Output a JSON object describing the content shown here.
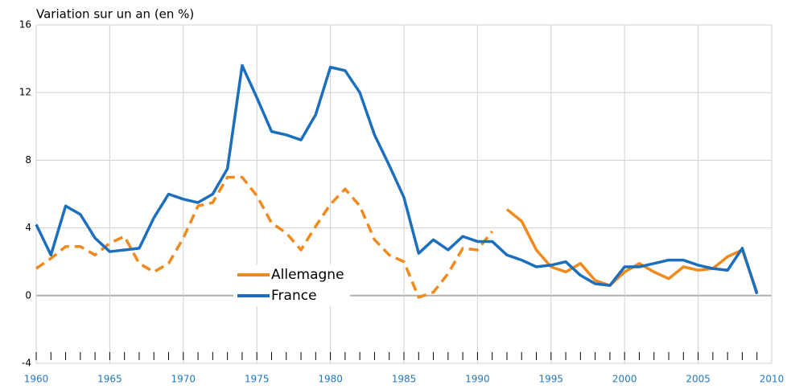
{
  "chart_data": {
    "type": "line",
    "title": "Variation sur un an (en %)",
    "x": [
      1960,
      1961,
      1962,
      1963,
      1964,
      1965,
      1966,
      1967,
      1968,
      1969,
      1970,
      1971,
      1972,
      1973,
      1974,
      1975,
      1976,
      1977,
      1978,
      1979,
      1980,
      1981,
      1982,
      1983,
      1984,
      1985,
      1986,
      1987,
      1988,
      1989,
      1990,
      1991,
      1992,
      1993,
      1994,
      1995,
      1996,
      1997,
      1998,
      1999,
      2000,
      2001,
      2002,
      2003,
      2004,
      2005,
      2006,
      2007,
      2008,
      2009
    ],
    "series": [
      {
        "name": "Allemagne",
        "color": "#f08a1c",
        "dashed_until": 1991,
        "values": [
          1.6,
          2.2,
          2.9,
          2.9,
          2.4,
          3.1,
          3.5,
          1.9,
          1.4,
          1.9,
          3.4,
          5.3,
          5.5,
          7.0,
          7.0,
          5.9,
          4.3,
          3.7,
          2.7,
          4.1,
          5.4,
          6.3,
          5.3,
          3.3,
          2.4,
          2.0,
          -0.1,
          0.2,
          1.3,
          2.8,
          2.7,
          3.8,
          5.1,
          4.4,
          2.7,
          1.7,
          1.4,
          1.9,
          0.9,
          0.6,
          1.4,
          1.9,
          1.4,
          1.0,
          1.7,
          1.5,
          1.6,
          2.3,
          2.7,
          0.2
        ]
      },
      {
        "name": "France",
        "color": "#1b6fbd",
        "values": [
          4.2,
          2.4,
          5.3,
          4.8,
          3.4,
          2.6,
          2.7,
          2.8,
          4.6,
          6.0,
          5.7,
          5.5,
          6.0,
          7.5,
          13.6,
          11.7,
          9.7,
          9.5,
          9.2,
          10.7,
          13.5,
          13.3,
          12.0,
          9.5,
          7.7,
          5.8,
          2.5,
          3.3,
          2.7,
          3.5,
          3.2,
          3.2,
          2.4,
          2.1,
          1.7,
          1.8,
          2.0,
          1.2,
          0.7,
          0.6,
          1.7,
          1.7,
          1.9,
          2.1,
          2.1,
          1.8,
          1.6,
          1.5,
          2.8,
          0.1
        ]
      }
    ],
    "xlim": [
      1960,
      2010
    ],
    "xticks": [
      1960,
      1965,
      1970,
      1975,
      1980,
      1985,
      1990,
      1995,
      2000,
      2005,
      2010
    ],
    "ylim": [
      -4,
      16
    ],
    "yticks": [
      -4,
      0,
      4,
      8,
      12,
      16
    ],
    "grid": true,
    "legend": "lower-middle"
  }
}
